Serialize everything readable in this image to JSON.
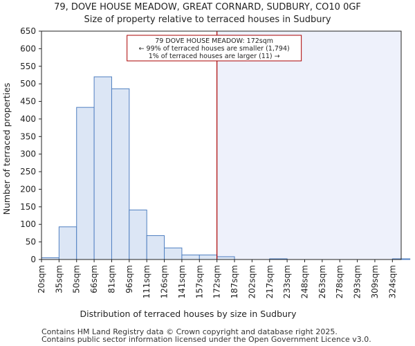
{
  "chart_data": {
    "type": "bar",
    "title": "79, DOVE HOUSE MEADOW, GREAT CORNARD, SUDBURY, CO10 0GF",
    "subtitle": "Size of property relative to terraced houses in Sudbury",
    "xlabel": "Distribution of terraced houses by size in Sudbury",
    "ylabel": "Number of terraced properties",
    "categories": [
      "20sqm",
      "35sqm",
      "50sqm",
      "66sqm",
      "81sqm",
      "96sqm",
      "111sqm",
      "126sqm",
      "141sqm",
      "157sqm",
      "172sqm",
      "187sqm",
      "202sqm",
      "217sqm",
      "233sqm",
      "248sqm",
      "263sqm",
      "278sqm",
      "293sqm",
      "309sqm",
      "324sqm"
    ],
    "values": [
      5,
      93,
      433,
      520,
      486,
      141,
      68,
      33,
      13,
      13,
      8,
      0,
      0,
      2,
      0,
      0,
      0,
      0,
      0,
      0,
      2
    ],
    "ylim": [
      0,
      650
    ],
    "yticks": [
      0,
      50,
      100,
      150,
      200,
      250,
      300,
      350,
      400,
      450,
      500,
      550,
      600,
      650
    ],
    "grid": false,
    "marker": {
      "value_index": 10,
      "color": "#aa0000",
      "annotation": [
        "79 DOVE HOUSE MEADOW: 172sqm",
        "← 99% of terraced houses are smaller (1,794)",
        "1% of terraced houses are larger (11) →"
      ]
    },
    "colors": {
      "bar_fill": "#dce6f5",
      "bar_stroke": "#4f7fc0",
      "highlight_fill": "#eef1fb"
    }
  },
  "footer": {
    "line1": "Contains HM Land Registry data © Crown copyright and database right 2025.",
    "line2": "Contains public sector information licensed under the Open Government Licence v3.0."
  }
}
